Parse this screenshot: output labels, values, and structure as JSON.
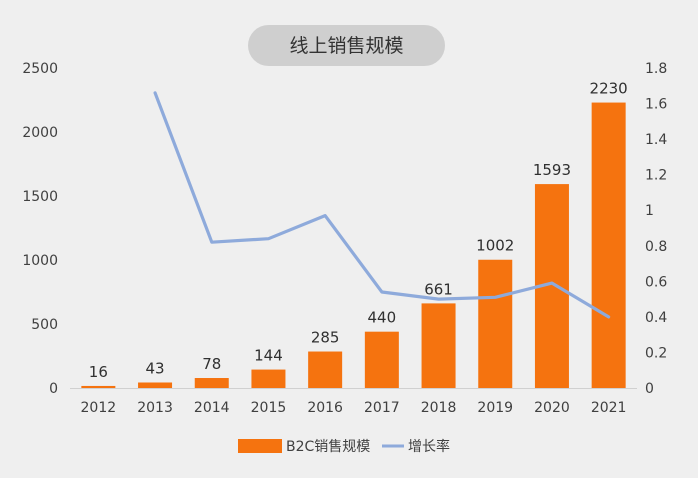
{
  "chart_data": {
    "type": "bar",
    "title": "线上销售规模",
    "categories": [
      "2012",
      "2013",
      "2014",
      "2015",
      "2016",
      "2017",
      "2018",
      "2019",
      "2020",
      "2021"
    ],
    "series": [
      {
        "name": "B2C销售规模",
        "type": "bar",
        "axis": "left",
        "color": "#f5730f",
        "values": [
          16,
          43,
          78,
          144,
          285,
          440,
          661,
          1002,
          1593,
          2230
        ],
        "data_labels": [
          "16",
          "43",
          "78",
          "144",
          "285",
          "440",
          "661",
          "1002",
          "1593",
          "2230"
        ]
      },
      {
        "name": "增长率",
        "type": "line",
        "axis": "right",
        "color": "#8eaadb",
        "values": [
          null,
          1.66,
          0.82,
          0.84,
          0.97,
          0.54,
          0.5,
          0.51,
          0.59,
          0.4
        ]
      }
    ],
    "y_left": {
      "min": 0,
      "max": 2500,
      "ticks": [
        "0",
        "500",
        "1000",
        "1500",
        "2000",
        "2500"
      ]
    },
    "y_right": {
      "min": 0,
      "max": 1.8,
      "ticks": [
        "0",
        "0.2",
        "0.4",
        "0.6",
        "0.8",
        "1",
        "1.2",
        "1.4",
        "1.6",
        "1.8"
      ]
    },
    "grid": false,
    "legend_position": "bottom"
  }
}
